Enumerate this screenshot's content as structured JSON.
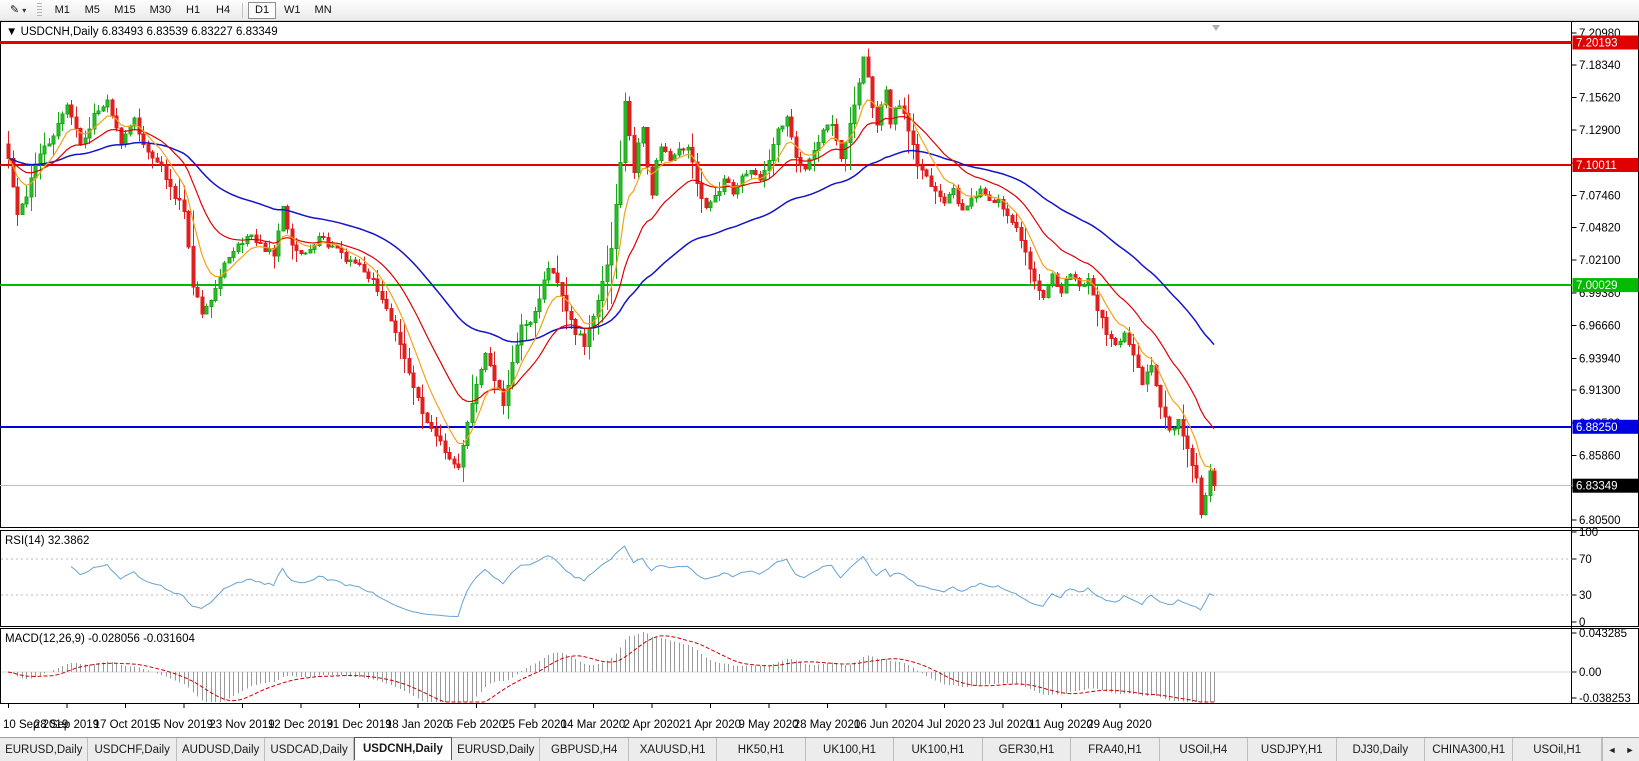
{
  "toolbar": {
    "cursor_tool_glyph": "✎",
    "dropdown_glyph": "▾",
    "timeframes": [
      "M1",
      "M5",
      "M15",
      "M30",
      "H1",
      "H4",
      "D1",
      "W1",
      "MN"
    ],
    "active_timeframe": "D1"
  },
  "chart": {
    "title_arrow": "▼",
    "symbol_period": "USDCNH,Daily",
    "ohlc": "6.83493 6.83539 6.83227 6.83349",
    "open": "6.83493",
    "high": "6.83539",
    "low": "6.83227",
    "close": "6.83349"
  },
  "price_axis": {
    "max": 7.2098,
    "min": 6.805,
    "ticks": [
      "7.20980",
      "7.18340",
      "7.15620",
      "7.12900",
      "7.10180",
      "7.07460",
      "7.04820",
      "7.02100",
      "6.99380",
      "6.96660",
      "6.93940",
      "6.91300",
      "6.88580",
      "6.85860",
      "6.83140",
      "6.80500"
    ]
  },
  "levels": [
    {
      "value": 7.20193,
      "label": "7.20193",
      "color": "#e00000",
      "width": 3
    },
    {
      "value": 7.10011,
      "label": "7.10011",
      "color": "#e00000",
      "width": 2
    },
    {
      "value": 7.00029,
      "label": "7.00029",
      "color": "#00bb00",
      "width": 2
    },
    {
      "value": 6.8825,
      "label": "6.88250",
      "color": "#0000e0",
      "width": 2
    }
  ],
  "current_price": {
    "value": 6.83349,
    "label": "6.83349",
    "line_color": "#bdbdbd",
    "box_color": "#000000"
  },
  "rsi": {
    "label": "RSI(14) 32.3862",
    "period": 14,
    "value": 32.3862,
    "axis_labels": [
      "100",
      "70",
      "30",
      "0"
    ],
    "levels": [
      70,
      30
    ],
    "line_color": "#66a3d6"
  },
  "macd": {
    "label": "MACD(12,26,9) -0.028056 -0.031604",
    "fast": 12,
    "slow": 26,
    "signal_period": 9,
    "macd_value": -0.028056,
    "signal_value": -0.031604,
    "axis_labels": [
      "0.043285",
      "0.00",
      "-0.038253"
    ],
    "axis_values": [
      0.043285,
      0,
      -0.038253
    ],
    "histogram_color": "#9a9a9a",
    "signal_color": "#cc0000"
  },
  "date_axis": [
    "10 Sep 2019",
    "28 Sep 2019",
    "17 Oct 2019",
    "5 Nov 2019",
    "23 Nov 2019",
    "12 Dec 2019",
    "31 Dec 2019",
    "18 Jan 2020",
    "6 Feb 2020",
    "25 Feb 2020",
    "14 Mar 2020",
    "2 Apr 2020",
    "21 Apr 2020",
    "9 May 2020",
    "28 May 2020",
    "16 Jun 2020",
    "4 Jul 2020",
    "23 Jul 2020",
    "11 Aug 2020",
    "29 Aug 2020"
  ],
  "chart_data": {
    "type": "candlestick",
    "symbol": "USDCNH",
    "timeframe": "Daily",
    "bars": 269,
    "bars_per_tick": 13,
    "last_close": 6.83349,
    "clamp_high": 7.1968,
    "clamp_low": 6.8058,
    "ma": [
      {
        "period": 8,
        "color": "#f4a21a"
      },
      {
        "period": 20,
        "color": "#e00000"
      },
      {
        "period": 55,
        "color": "#1414c8"
      }
    ],
    "up_color": "#2fbb2f",
    "up_stroke": "#18a818",
    "down_color": "#e01f1f",
    "waypoints": [
      [
        0,
        7.105
      ],
      [
        2,
        7.06
      ],
      [
        4,
        7.075
      ],
      [
        7,
        7.11
      ],
      [
        10,
        7.125
      ],
      [
        13,
        7.148
      ],
      [
        16,
        7.118
      ],
      [
        19,
        7.14
      ],
      [
        22,
        7.152
      ],
      [
        25,
        7.12
      ],
      [
        28,
        7.136
      ],
      [
        31,
        7.112
      ],
      [
        34,
        7.1
      ],
      [
        36,
        7.082
      ],
      [
        39,
        7.062
      ],
      [
        41,
        7.0
      ],
      [
        43,
        6.975
      ],
      [
        45,
        6.988
      ],
      [
        48,
        7.02
      ],
      [
        51,
        7.032
      ],
      [
        54,
        7.042
      ],
      [
        57,
        7.03
      ],
      [
        59,
        7.026
      ],
      [
        61,
        7.066
      ],
      [
        63,
        7.032
      ],
      [
        66,
        7.028
      ],
      [
        69,
        7.04
      ],
      [
        72,
        7.032
      ],
      [
        75,
        7.022
      ],
      [
        78,
        7.018
      ],
      [
        81,
        7.004
      ],
      [
        84,
        6.98
      ],
      [
        87,
        6.95
      ],
      [
        90,
        6.915
      ],
      [
        93,
        6.885
      ],
      [
        96,
        6.868
      ],
      [
        98,
        6.856
      ],
      [
        100,
        6.846
      ],
      [
        102,
        6.886
      ],
      [
        104,
        6.916
      ],
      [
        106,
        6.942
      ],
      [
        108,
        6.922
      ],
      [
        110,
        6.902
      ],
      [
        112,
        6.936
      ],
      [
        114,
        6.966
      ],
      [
        116,
        6.972
      ],
      [
        118,
        6.988
      ],
      [
        120,
        7.016
      ],
      [
        122,
        7.002
      ],
      [
        124,
        6.978
      ],
      [
        126,
        6.962
      ],
      [
        128,
        6.952
      ],
      [
        130,
        6.976
      ],
      [
        132,
        7.002
      ],
      [
        134,
        7.03
      ],
      [
        136,
        7.102
      ],
      [
        137,
        7.155
      ],
      [
        138,
        7.126
      ],
      [
        139,
        7.092
      ],
      [
        140,
        7.116
      ],
      [
        141,
        7.13
      ],
      [
        142,
        7.096
      ],
      [
        143,
        7.076
      ],
      [
        144,
        7.102
      ],
      [
        145,
        7.118
      ],
      [
        147,
        7.102
      ],
      [
        149,
        7.112
      ],
      [
        151,
        7.116
      ],
      [
        153,
        7.086
      ],
      [
        155,
        7.062
      ],
      [
        157,
        7.072
      ],
      [
        159,
        7.09
      ],
      [
        161,
        7.078
      ],
      [
        163,
        7.092
      ],
      [
        165,
        7.098
      ],
      [
        167,
        7.086
      ],
      [
        169,
        7.102
      ],
      [
        171,
        7.128
      ],
      [
        173,
        7.138
      ],
      [
        175,
        7.106
      ],
      [
        177,
        7.098
      ],
      [
        179,
        7.112
      ],
      [
        181,
        7.128
      ],
      [
        183,
        7.135
      ],
      [
        185,
        7.108
      ],
      [
        187,
        7.132
      ],
      [
        189,
        7.168
      ],
      [
        190,
        7.192
      ],
      [
        191,
        7.176
      ],
      [
        192,
        7.15
      ],
      [
        193,
        7.132
      ],
      [
        194,
        7.148
      ],
      [
        195,
        7.16
      ],
      [
        196,
        7.136
      ],
      [
        198,
        7.152
      ],
      [
        200,
        7.128
      ],
      [
        202,
        7.102
      ],
      [
        204,
        7.092
      ],
      [
        206,
        7.078
      ],
      [
        208,
        7.068
      ],
      [
        210,
        7.08
      ],
      [
        212,
        7.062
      ],
      [
        214,
        7.07
      ],
      [
        216,
        7.078
      ],
      [
        218,
        7.068
      ],
      [
        220,
        7.072
      ],
      [
        222,
        7.06
      ],
      [
        224,
        7.048
      ],
      [
        226,
        7.03
      ],
      [
        228,
        7.002
      ],
      [
        230,
        6.992
      ],
      [
        232,
        7.008
      ],
      [
        234,
        6.996
      ],
      [
        236,
        7.012
      ],
      [
        238,
        6.998
      ],
      [
        240,
        7.006
      ],
      [
        242,
        6.982
      ],
      [
        244,
        6.962
      ],
      [
        246,
        6.948
      ],
      [
        248,
        6.962
      ],
      [
        250,
        6.942
      ],
      [
        252,
        6.92
      ],
      [
        254,
        6.932
      ],
      [
        256,
        6.9
      ],
      [
        258,
        6.878
      ],
      [
        260,
        6.888
      ],
      [
        262,
        6.862
      ],
      [
        263,
        6.85
      ],
      [
        264,
        6.838
      ],
      [
        265,
        6.812
      ],
      [
        266,
        6.824
      ],
      [
        267,
        6.846
      ],
      [
        268,
        6.83349
      ]
    ]
  },
  "tabs": {
    "items": [
      "EURUSD,Daily",
      "USDCHF,Daily",
      "AUDUSD,Daily",
      "USDCAD,Daily",
      "USDCNH,Daily",
      "EURUSD,Daily",
      "GBPUSD,H4",
      "XAUUSD,H1",
      "HK50,H1",
      "UK100,H1",
      "UK100,H1",
      "GER30,H1",
      "FRA40,H1",
      "USOil,H4",
      "USDJPY,H1",
      "DJ30,Daily",
      "CHINA300,H1",
      "USOil,H1"
    ],
    "active_index": 4,
    "scroll_left_glyph": "◄",
    "scroll_right_glyph": "►"
  }
}
